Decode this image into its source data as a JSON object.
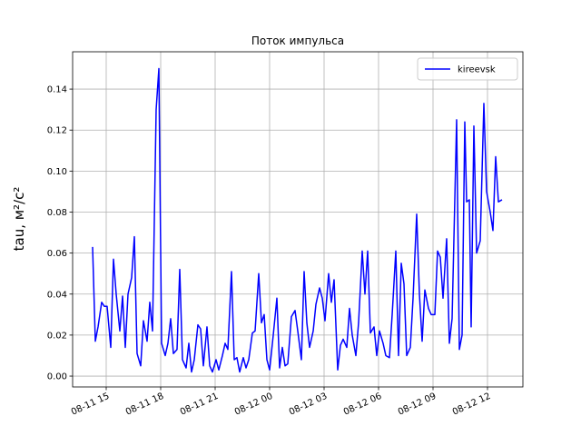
{
  "chart_data": {
    "type": "line",
    "title": "Поток импульса",
    "ylabel": "tau, м²/с²",
    "legend": "upper right",
    "grid": true,
    "xlim": [
      13.15,
      37.95
    ],
    "ylim": [
      -0.0053,
      0.1582
    ],
    "xticks": [
      {
        "value": 15,
        "label": "08-11 15"
      },
      {
        "value": 18,
        "label": "08-11 18"
      },
      {
        "value": 21,
        "label": "08-11 21"
      },
      {
        "value": 24,
        "label": "08-12 00"
      },
      {
        "value": 27,
        "label": "08-12 03"
      },
      {
        "value": 30,
        "label": "08-12 06"
      },
      {
        "value": 33,
        "label": "08-12 09"
      },
      {
        "value": 36,
        "label": "08-12 12"
      }
    ],
    "yticks": [
      {
        "value": 0,
        "label": "0.00"
      },
      0.02,
      0.04,
      0.06,
      0.08,
      {
        "value": 0.1,
        "label": "0.10"
      },
      0.12,
      0.14
    ],
    "x": [
      14.25,
      14.4,
      14.55,
      14.75,
      14.9,
      15.05,
      15.25,
      15.4,
      15.55,
      15.75,
      15.9,
      16.05,
      16.2,
      16.4,
      16.55,
      16.7,
      16.9,
      17.05,
      17.25,
      17.4,
      17.55,
      17.75,
      17.9,
      18.05,
      18.25,
      18.4,
      18.55,
      18.7,
      18.9,
      19.05,
      19.2,
      19.4,
      19.55,
      19.7,
      19.85,
      20.05,
      20.2,
      20.35,
      20.55,
      20.7,
      20.85,
      21.05,
      21.2,
      21.4,
      21.55,
      21.7,
      21.9,
      22.05,
      22.2,
      22.35,
      22.55,
      22.7,
      22.85,
      23.05,
      23.2,
      23.4,
      23.55,
      23.7,
      23.85,
      24.0,
      24.2,
      24.4,
      24.55,
      24.7,
      24.85,
      25.0,
      25.2,
      25.4,
      25.55,
      25.75,
      25.9,
      26.05,
      26.2,
      26.4,
      26.55,
      26.75,
      26.9,
      27.05,
      27.25,
      27.4,
      27.55,
      27.75,
      27.9,
      28.05,
      28.25,
      28.4,
      28.55,
      28.75,
      28.9,
      29.1,
      29.25,
      29.4,
      29.55,
      29.75,
      29.9,
      30.05,
      30.25,
      30.4,
      30.6,
      30.75,
      30.95,
      31.1,
      31.25,
      31.4,
      31.55,
      31.75,
      31.9,
      32.1,
      32.25,
      32.4,
      32.55,
      32.75,
      32.9,
      33.1,
      33.25,
      33.4,
      33.55,
      33.75,
      33.9,
      34.05,
      34.3,
      34.45,
      34.6,
      34.75,
      34.85,
      35.0,
      35.1,
      35.25,
      35.4,
      35.6,
      35.8,
      35.95,
      36.15,
      36.3,
      36.45,
      36.6,
      36.8
    ],
    "series": [
      {
        "name": "kireevsk",
        "color": "#0000ff",
        "values": [
          0.063,
          0.017,
          0.024,
          0.036,
          0.034,
          0.034,
          0.014,
          0.057,
          0.04,
          0.022,
          0.039,
          0.014,
          0.04,
          0.048,
          0.068,
          0.011,
          0.005,
          0.027,
          0.017,
          0.036,
          0.022,
          0.13,
          0.15,
          0.016,
          0.01,
          0.016,
          0.028,
          0.011,
          0.013,
          0.052,
          0.008,
          0.004,
          0.016,
          0.002,
          0.008,
          0.025,
          0.023,
          0.005,
          0.024,
          0.005,
          0.002,
          0.008,
          0.003,
          0.01,
          0.016,
          0.013,
          0.051,
          0.008,
          0.009,
          0.002,
          0.009,
          0.004,
          0.008,
          0.021,
          0.022,
          0.05,
          0.026,
          0.03,
          0.008,
          0.003,
          0.02,
          0.038,
          0.004,
          0.014,
          0.005,
          0.006,
          0.029,
          0.032,
          0.022,
          0.008,
          0.051,
          0.026,
          0.014,
          0.022,
          0.035,
          0.043,
          0.038,
          0.027,
          0.05,
          0.036,
          0.047,
          0.003,
          0.015,
          0.018,
          0.014,
          0.033,
          0.02,
          0.01,
          0.026,
          0.061,
          0.04,
          0.061,
          0.021,
          0.024,
          0.01,
          0.022,
          0.016,
          0.01,
          0.009,
          0.03,
          0.061,
          0.01,
          0.055,
          0.045,
          0.01,
          0.014,
          0.038,
          0.079,
          0.04,
          0.017,
          0.042,
          0.033,
          0.03,
          0.03,
          0.061,
          0.058,
          0.038,
          0.067,
          0.016,
          0.028,
          0.125,
          0.013,
          0.02,
          0.124,
          0.085,
          0.086,
          0.024,
          0.122,
          0.06,
          0.066,
          0.133,
          0.09,
          0.08,
          0.071,
          0.107,
          0.085,
          0.086
        ]
      }
    ]
  }
}
